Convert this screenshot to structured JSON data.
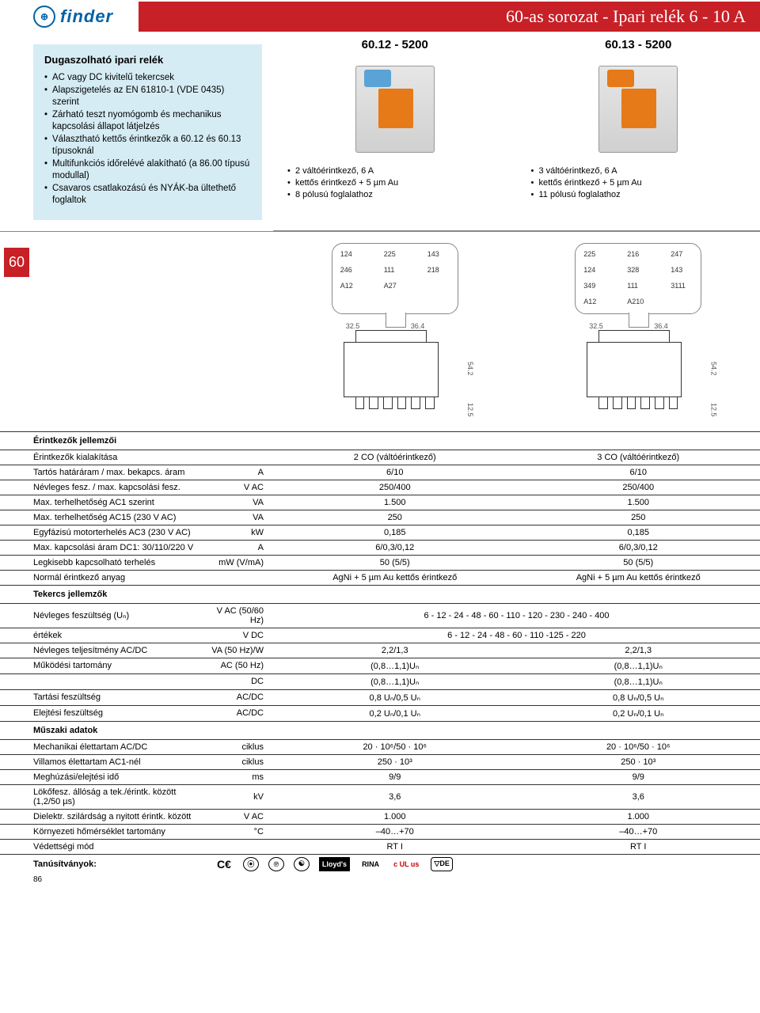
{
  "logo": {
    "icon": "⊕",
    "text": "finder"
  },
  "title": "60-as sorozat - Ipari relék 6 - 10 A",
  "side_tab": "60",
  "page_number": "86",
  "intro": {
    "heading": "Dugaszolható ipari relék",
    "items": [
      "AC vagy DC kivitelű tekercsek",
      "Alapszigetelés az EN 61810-1 (VDE 0435)  szerint",
      "Zárható teszt nyomógomb és mechanikus kapcsolási állapot látjelzés",
      "Választható kettős érintkezők a 60.12 és 60.13 típusoknál",
      "Multifunkciós időrelévé alakítható (a 86.00 típusú modullal)",
      "Csavaros csatlakozású és NYÁK-ba ültethető foglaltok"
    ]
  },
  "models": [
    {
      "code": "60.12 - 5200",
      "top_color": "#5aa3d6",
      "features": [
        "2 váltóérintkező, 6 A",
        "kettős érintkező + 5 µm Au",
        "8 pólusú foglalathoz"
      ],
      "pins": [
        "124",
        "225",
        "143",
        "246",
        "111",
        "218",
        "A12",
        "A27"
      ],
      "dims": {
        "w1": "32.5",
        "w2": "36.4",
        "h": "54.2",
        "p": "12.5"
      }
    },
    {
      "code": "60.13 - 5200",
      "top_color": "#e67a18",
      "features": [
        "3 váltóérintkező, 6 A",
        "kettős érintkező + 5 µm Au",
        "11 pólusú foglalathoz"
      ],
      "pins": [
        "225",
        "216",
        "247",
        "124",
        "328",
        "143",
        "349",
        "111",
        "3111",
        "A12",
        "A210"
      ],
      "dims": {
        "w1": "32.5",
        "w2": "36.4",
        "h": "54.2",
        "p": "12.5"
      }
    }
  ],
  "spec_sections": [
    {
      "title": "Érintkezők jellemzői",
      "rows": [
        {
          "label": "Érintkezők kialakítása",
          "unit": "",
          "v": [
            "2 CO (váltóérintkező)",
            "3 CO (váltóérintkező)"
          ]
        },
        {
          "label": "Tartós határáram / max. bekapcs. áram",
          "unit": "A",
          "v": [
            "6/10",
            "6/10"
          ]
        },
        {
          "label": "Névleges fesz. / max. kapcsolási fesz.",
          "unit": "V AC",
          "v": [
            "250/400",
            "250/400"
          ]
        },
        {
          "label": "Max. terhelhetőség AC1 szerint",
          "unit": "VA",
          "v": [
            "1.500",
            "1.500"
          ]
        },
        {
          "label": "Max. terhelhetőség AC15 (230 V AC)",
          "unit": "VA",
          "v": [
            "250",
            "250"
          ]
        },
        {
          "label": "Egyfázisú motorterhelés AC3 (230 V AC)",
          "unit": "kW",
          "v": [
            "0,185",
            "0,185"
          ]
        },
        {
          "label": "Max. kapcsolási áram DC1: 30/110/220 V",
          "unit": "A",
          "v": [
            "6/0,3/0,12",
            "6/0,3/0,12"
          ]
        },
        {
          "label": "Legkisebb kapcsolható terhelés",
          "unit": "mW (V/mA)",
          "v": [
            "50 (5/5)",
            "50 (5/5)"
          ]
        },
        {
          "label": "Normál érintkező anyag",
          "unit": "",
          "v": [
            "AgNi + 5 µm Au kettős érintkező",
            "AgNi + 5 µm Au kettős érintkező"
          ]
        }
      ]
    },
    {
      "title": "Tekercs jellemzők",
      "rows": [
        {
          "label": "Névleges feszültség (Uₙ)",
          "unit": "V AC (50/60 Hz)",
          "merged": "6 - 12 - 24 - 48 - 60 - 110 - 120 - 230 - 240 - 400"
        },
        {
          "label": "értékek",
          "unit": "V DC",
          "merged": "6 - 12 - 24 - 48 - 60 - 110 -125 - 220"
        },
        {
          "label": "Névleges teljesítmény AC/DC",
          "unit": "VA (50 Hz)/W",
          "v": [
            "2,2/1,3",
            "2,2/1,3"
          ]
        },
        {
          "label": "Működési tartomány",
          "unit": "AC (50 Hz)",
          "v": [
            "(0,8…1,1)Uₙ",
            "(0,8…1,1)Uₙ"
          ]
        },
        {
          "label": "",
          "unit": "DC",
          "v": [
            "(0,8…1,1)Uₙ",
            "(0,8…1,1)Uₙ"
          ]
        },
        {
          "label": "Tartási feszültség",
          "unit": "AC/DC",
          "v": [
            "0,8 Uₙ/0,5 Uₙ",
            "0,8 Uₙ/0,5 Uₙ"
          ]
        },
        {
          "label": "Elejtési feszültség",
          "unit": "AC/DC",
          "v": [
            "0,2 Uₙ/0,1 Uₙ",
            "0,2 Uₙ/0,1 Uₙ"
          ]
        }
      ]
    },
    {
      "title": "Műszaki adatok",
      "rows": [
        {
          "label": "Mechanikai élettartam AC/DC",
          "unit": "ciklus",
          "v": [
            "20 · 10⁶/50 · 10⁶",
            "20 · 10⁶/50 · 10⁶"
          ]
        },
        {
          "label": "Villamos élettartam AC1-nél",
          "unit": "ciklus",
          "v": [
            "250 · 10³",
            "250 · 10³"
          ]
        },
        {
          "label": "Meghúzási/elejtési idő",
          "unit": "ms",
          "v": [
            "9/9",
            "9/9"
          ]
        },
        {
          "label": "Lökőfesz. állóság a tek./érintk. között (1,2/50 µs)",
          "unit": "kV",
          "v": [
            "3,6",
            "3,6"
          ]
        },
        {
          "label": "Dielektr. szilárdság a nyitott érintk. között",
          "unit": "V AC",
          "v": [
            "1.000",
            "1.000"
          ]
        },
        {
          "label": "Környezeti hőmérséklet tartomány",
          "unit": "°C",
          "v": [
            "–40…+70",
            "–40…+70"
          ]
        },
        {
          "label": "Védettségi mód",
          "unit": "",
          "v": [
            "RT I",
            "RT I"
          ]
        }
      ]
    }
  ],
  "cert_label": "Tanúsítványok:",
  "certs": [
    "CE",
    "CSA",
    "℗C",
    "☯",
    "Lloyd's",
    "RINA",
    "cULus",
    "VDE"
  ]
}
